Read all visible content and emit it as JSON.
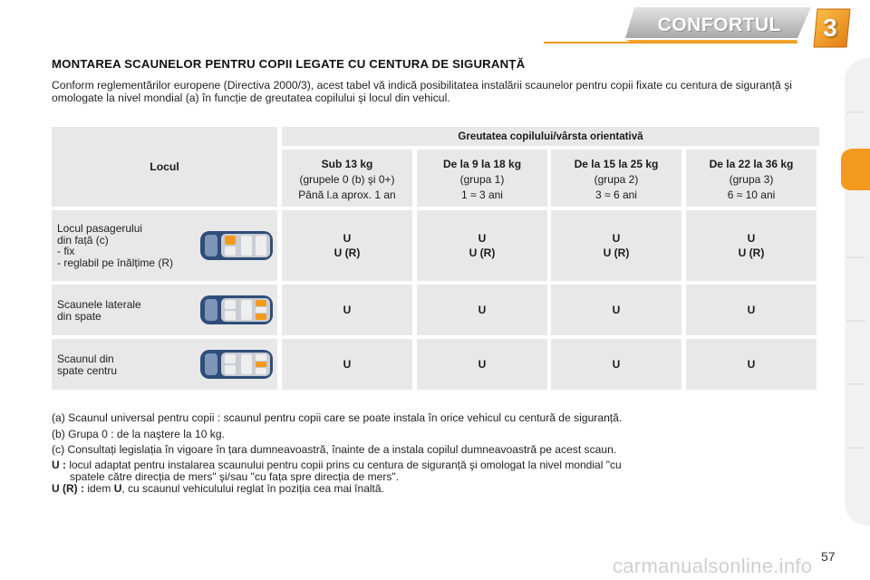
{
  "header": {
    "title": "CONFORTUL",
    "chapter": "3",
    "accent": "#f29a1f",
    "band": "#c9c9c9"
  },
  "title": "MONTAREA SCAUNELOR PENTRU COPII LEGATE CU CENTURA DE SIGURANȚĂ",
  "intro": "Conform reglementărilor europene (Directiva 2000/3), acest tabel vă indică posibilitatea instalării scaunelor pentru copii fixate cu centura de siguranță  şi omologate la nivel mondial (a) în funcție de greutatea copilului şi locul din vehicul.",
  "table": {
    "seat_header": "Locul",
    "group_header": "Greutatea copilului/vârsta orientativă",
    "columns": [
      {
        "title": "Sub 13 kg",
        "line1": "(grupele 0 (b) şi 0+)",
        "line2": "Până l.a aprox. 1 an"
      },
      {
        "title": "De la 9 la 18 kg",
        "line1": "(grupa 1)",
        "line2": "1 ≈ 3 ani"
      },
      {
        "title": "De la 15 la 25 kg",
        "line1": "(grupa 2)",
        "line2": "3 ≈ 6 ani"
      },
      {
        "title": "De la 22 la 36 kg",
        "line1": "(grupa 3)",
        "line2": "6 ≈ 10 ani"
      }
    ],
    "rows": [
      {
        "label_lines": [
          "Locul pasagerului",
          "din față (c)",
          "- fix",
          "- reglabil pe înălțime (R)"
        ],
        "icon": "car-front-seat-icon",
        "values": [
          [
            "U",
            "U (R)"
          ],
          [
            "U",
            "U (R)"
          ],
          [
            "U",
            "U (R)"
          ],
          [
            "U",
            "U (R)"
          ]
        ]
      },
      {
        "label_lines": [
          "Scaunele laterale",
          "din spate"
        ],
        "icon": "car-rear-side-seats-icon",
        "values": [
          [
            "U"
          ],
          [
            "U"
          ],
          [
            "U"
          ],
          [
            "U"
          ]
        ]
      },
      {
        "label_lines": [
          "Scaunul din",
          "spate centru"
        ],
        "icon": "car-rear-center-seat-icon",
        "values": [
          [
            "U"
          ],
          [
            "U"
          ],
          [
            "U"
          ],
          [
            "U"
          ]
        ]
      }
    ]
  },
  "notes": [
    "(a) Scaunul universal pentru copii : scaunul pentru copii care se poate instala în orice vehicul cu centură de siguranță.",
    "(b) Grupa 0 : de la naştere la 10 kg.",
    "(c) Consultați legislația în vigoare în țara dumneavoastră, înainte de a instala copilul dumneavoastră pe acest scaun."
  ],
  "definitions": {
    "u_key": "U :",
    "u_line1": "locul adaptat pentru instalarea scaunului pentru copii prins cu centura de siguranță şi omologat la nivel mondial \"cu",
    "u_line2": "spatele către direcția de mers\" şi/sau \"cu fața spre direcția de mers\".",
    "ur_key": "U (R) :",
    "ur_pre": "idem",
    "ur_bold": "U",
    "ur_post": ", cu scaunul vehiculului reglat în poziția cea mai înaltă."
  },
  "page_number": "57",
  "watermark": "carmanualsonline.info"
}
